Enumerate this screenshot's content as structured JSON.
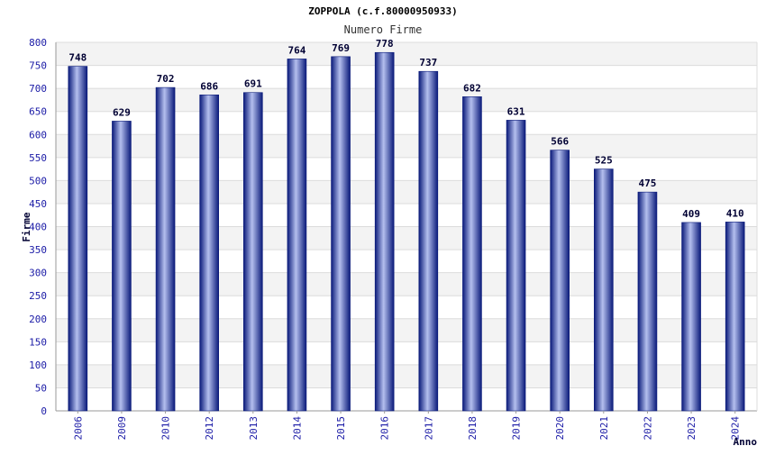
{
  "chart_data": {
    "type": "bar",
    "title": "ZOPPOLA (c.f.80000950933)",
    "subtitle": "Numero Firme",
    "xlabel": "Anno",
    "ylabel": "Firme",
    "ylim": [
      0,
      800
    ],
    "ytick_step": 50,
    "grid": true,
    "categories": [
      "2006",
      "2009",
      "2010",
      "2012",
      "2013",
      "2014",
      "2015",
      "2016",
      "2017",
      "2018",
      "2019",
      "2020",
      "2021",
      "2022",
      "2023",
      "2024"
    ],
    "series": [
      {
        "values": [
          748,
          629,
          702,
          686,
          691,
          764,
          769,
          778,
          737,
          682,
          631,
          566,
          525,
          475,
          409,
          410
        ]
      }
    ],
    "colors": {
      "bar_dark": "#0a1a7a",
      "bar_light": "#b4bfee",
      "band": "#f3f3f3",
      "grid": "#dcdcdc",
      "axis_text": "#1a1aa6"
    }
  }
}
